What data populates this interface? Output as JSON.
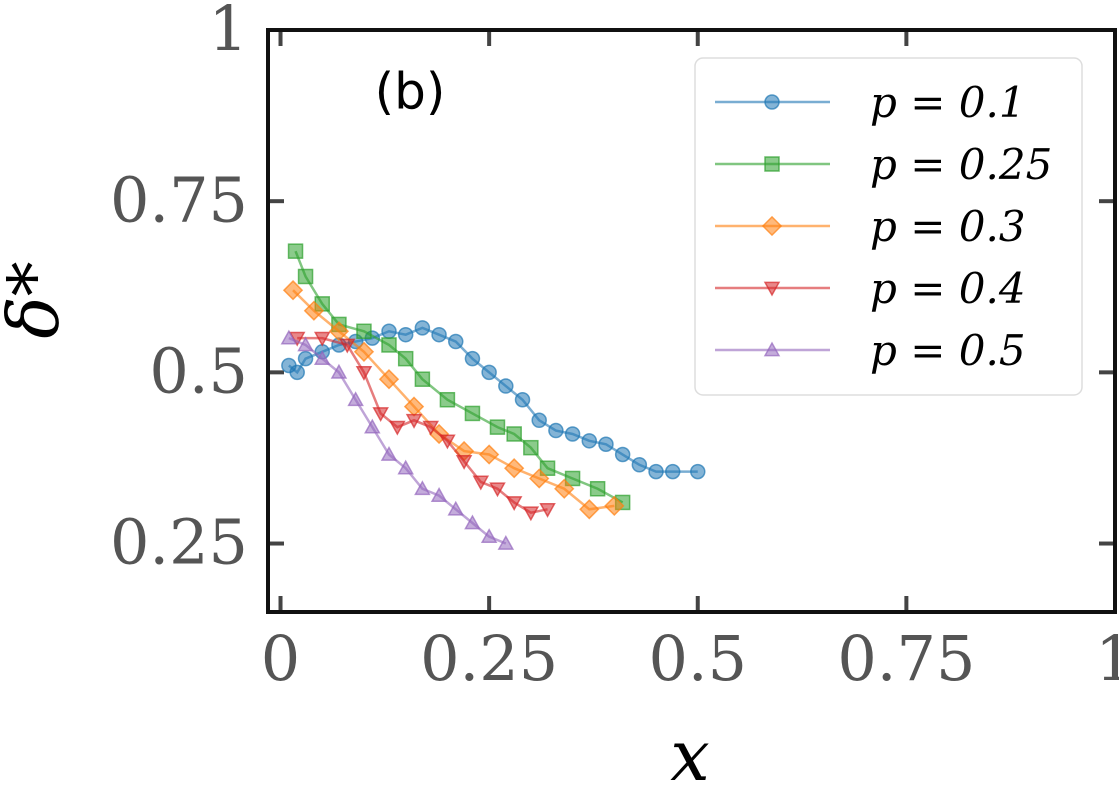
{
  "chart_data": {
    "type": "line",
    "annotation": "(b)",
    "xlabel": "x",
    "ylabel": "δ*",
    "xlim": [
      -0.015,
      1.0
    ],
    "ylim": [
      0.15,
      1.0
    ],
    "xticks": [
      0,
      0.25,
      0.5,
      0.75,
      1
    ],
    "yticks": [
      0.25,
      0.5,
      0.75,
      1
    ],
    "legend": "upper right",
    "series": [
      {
        "name": "p = 0.1",
        "color": "#1f77b4",
        "marker": "circle",
        "x": [
          0.01,
          0.02,
          0.03,
          0.05,
          0.07,
          0.09,
          0.11,
          0.13,
          0.15,
          0.17,
          0.19,
          0.21,
          0.23,
          0.25,
          0.27,
          0.29,
          0.31,
          0.33,
          0.35,
          0.37,
          0.39,
          0.41,
          0.43,
          0.45,
          0.47,
          0.5
        ],
        "values": [
          0.51,
          0.5,
          0.52,
          0.53,
          0.54,
          0.545,
          0.55,
          0.56,
          0.555,
          0.565,
          0.555,
          0.545,
          0.52,
          0.5,
          0.48,
          0.46,
          0.43,
          0.415,
          0.41,
          0.4,
          0.395,
          0.38,
          0.365,
          0.355,
          0.355,
          0.355
        ]
      },
      {
        "name": "p = 0.25",
        "color": "#2ca02c",
        "marker": "square",
        "x": [
          0.018,
          0.03,
          0.05,
          0.07,
          0.1,
          0.13,
          0.15,
          0.17,
          0.2,
          0.23,
          0.26,
          0.28,
          0.3,
          0.32,
          0.35,
          0.38,
          0.41
        ],
        "values": [
          0.677,
          0.64,
          0.6,
          0.57,
          0.56,
          0.54,
          0.52,
          0.49,
          0.46,
          0.44,
          0.42,
          0.41,
          0.39,
          0.36,
          0.345,
          0.33,
          0.31
        ]
      },
      {
        "name": "p = 0.3",
        "color": "#ff7f0e",
        "marker": "diamond",
        "x": [
          0.015,
          0.04,
          0.07,
          0.1,
          0.13,
          0.16,
          0.19,
          0.22,
          0.25,
          0.28,
          0.31,
          0.34,
          0.37,
          0.4
        ],
        "values": [
          0.62,
          0.59,
          0.56,
          0.53,
          0.49,
          0.45,
          0.41,
          0.385,
          0.38,
          0.36,
          0.345,
          0.33,
          0.3,
          0.305
        ]
      },
      {
        "name": "p = 0.4",
        "color": "#d62728",
        "marker": "triangle-down",
        "x": [
          0.02,
          0.05,
          0.08,
          0.1,
          0.12,
          0.14,
          0.16,
          0.18,
          0.2,
          0.22,
          0.24,
          0.26,
          0.28,
          0.3,
          0.32
        ],
        "values": [
          0.55,
          0.55,
          0.54,
          0.5,
          0.44,
          0.42,
          0.43,
          0.42,
          0.4,
          0.37,
          0.34,
          0.33,
          0.31,
          0.295,
          0.3
        ]
      },
      {
        "name": "p = 0.5",
        "color": "#9467bd",
        "marker": "triangle-up",
        "x": [
          0.01,
          0.03,
          0.05,
          0.07,
          0.09,
          0.11,
          0.13,
          0.15,
          0.17,
          0.19,
          0.21,
          0.23,
          0.25,
          0.27
        ],
        "values": [
          0.55,
          0.54,
          0.52,
          0.5,
          0.46,
          0.42,
          0.38,
          0.36,
          0.33,
          0.32,
          0.3,
          0.28,
          0.26,
          0.25
        ]
      }
    ]
  }
}
